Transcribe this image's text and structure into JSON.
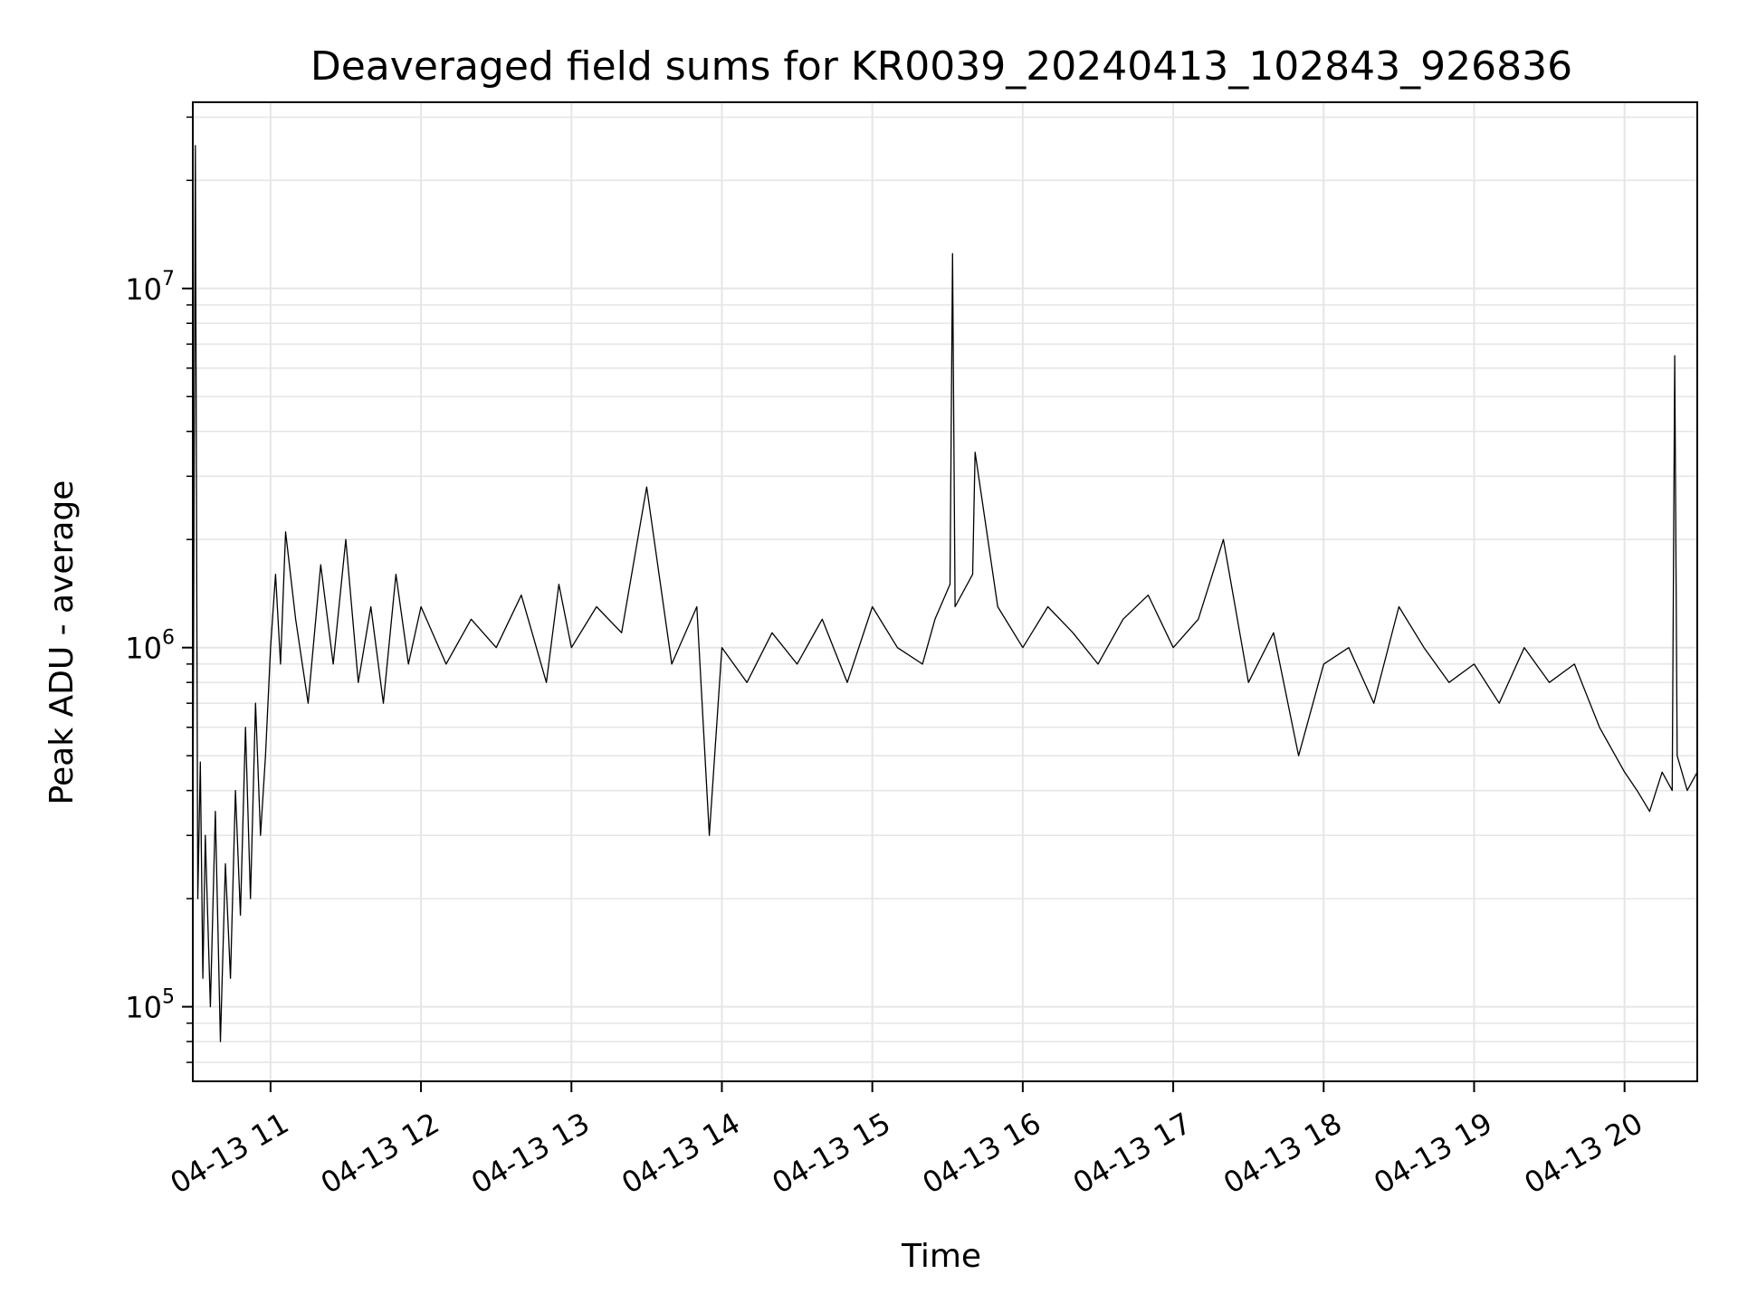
{
  "chart_data": {
    "type": "line",
    "title": "Deaveraged field sums for KR0039_20240413_102843_926836",
    "xlabel": "Time",
    "ylabel": "Peak ADU - average",
    "yscale": "log",
    "ylim": [
      62000,
      33000000
    ],
    "xlim": [
      "2024-04-13 10:29",
      "2024-04-13 20:29"
    ],
    "grid": true,
    "line_color": "#000000",
    "grid_color": "#e6e6e6",
    "x_ticks": [
      {
        "value": "2024-04-13 11:00",
        "label": "04-13 11"
      },
      {
        "value": "2024-04-13 12:00",
        "label": "04-13 12"
      },
      {
        "value": "2024-04-13 13:00",
        "label": "04-13 13"
      },
      {
        "value": "2024-04-13 14:00",
        "label": "04-13 14"
      },
      {
        "value": "2024-04-13 15:00",
        "label": "04-13 15"
      },
      {
        "value": "2024-04-13 16:00",
        "label": "04-13 16"
      },
      {
        "value": "2024-04-13 17:00",
        "label": "04-13 17"
      },
      {
        "value": "2024-04-13 18:00",
        "label": "04-13 18"
      },
      {
        "value": "2024-04-13 19:00",
        "label": "04-13 19"
      },
      {
        "value": "2024-04-13 20:00",
        "label": "04-13 20"
      }
    ],
    "y_ticks": [
      {
        "value": 100000,
        "base": "10",
        "exp": "5"
      },
      {
        "value": 1000000,
        "base": "10",
        "exp": "6"
      },
      {
        "value": 10000000,
        "base": "10",
        "exp": "7"
      }
    ],
    "series": [
      {
        "x": [
          "2024-04-13 10:29",
          "2024-04-13 10:30",
          "2024-04-13 10:31",
          "2024-04-13 10:32",
          "2024-04-13 10:33",
          "2024-04-13 10:34",
          "2024-04-13 10:36",
          "2024-04-13 10:38",
          "2024-04-13 10:40",
          "2024-04-13 10:42",
          "2024-04-13 10:44",
          "2024-04-13 10:46",
          "2024-04-13 10:48",
          "2024-04-13 10:50",
          "2024-04-13 10:52",
          "2024-04-13 10:54",
          "2024-04-13 10:56",
          "2024-04-13 10:58",
          "2024-04-13 11:00",
          "2024-04-13 11:02",
          "2024-04-13 11:04",
          "2024-04-13 11:06",
          "2024-04-13 11:10",
          "2024-04-13 11:15",
          "2024-04-13 11:20",
          "2024-04-13 11:25",
          "2024-04-13 11:30",
          "2024-04-13 11:35",
          "2024-04-13 11:40",
          "2024-04-13 11:45",
          "2024-04-13 11:50",
          "2024-04-13 11:55",
          "2024-04-13 12:00",
          "2024-04-13 12:10",
          "2024-04-13 12:20",
          "2024-04-13 12:30",
          "2024-04-13 12:40",
          "2024-04-13 12:50",
          "2024-04-13 12:55",
          "2024-04-13 13:00",
          "2024-04-13 13:10",
          "2024-04-13 13:20",
          "2024-04-13 13:30",
          "2024-04-13 13:40",
          "2024-04-13 13:50",
          "2024-04-13 13:55",
          "2024-04-13 14:00",
          "2024-04-13 14:10",
          "2024-04-13 14:20",
          "2024-04-13 14:30",
          "2024-04-13 14:40",
          "2024-04-13 14:50",
          "2024-04-13 15:00",
          "2024-04-13 15:10",
          "2024-04-13 15:20",
          "2024-04-13 15:25",
          "2024-04-13 15:31",
          "2024-04-13 15:32",
          "2024-04-13 15:33",
          "2024-04-13 15:40",
          "2024-04-13 15:41",
          "2024-04-13 15:50",
          "2024-04-13 16:00",
          "2024-04-13 16:10",
          "2024-04-13 16:20",
          "2024-04-13 16:30",
          "2024-04-13 16:40",
          "2024-04-13 16:50",
          "2024-04-13 17:00",
          "2024-04-13 17:10",
          "2024-04-13 17:20",
          "2024-04-13 17:30",
          "2024-04-13 17:40",
          "2024-04-13 17:50",
          "2024-04-13 18:00",
          "2024-04-13 18:10",
          "2024-04-13 18:20",
          "2024-04-13 18:30",
          "2024-04-13 18:40",
          "2024-04-13 18:50",
          "2024-04-13 19:00",
          "2024-04-13 19:10",
          "2024-04-13 19:20",
          "2024-04-13 19:30",
          "2024-04-13 19:40",
          "2024-04-13 19:50",
          "2024-04-13 20:00",
          "2024-04-13 20:05",
          "2024-04-13 20:10",
          "2024-04-13 20:15",
          "2024-04-13 20:19",
          "2024-04-13 20:20",
          "2024-04-13 20:21",
          "2024-04-13 20:25",
          "2024-04-13 20:29"
        ],
        "values": [
          280000,
          25000000,
          200000,
          480000,
          120000,
          300000,
          100000,
          350000,
          80000,
          250000,
          120000,
          400000,
          180000,
          600000,
          200000,
          700000,
          300000,
          500000,
          1000000,
          1600000,
          900000,
          2100000,
          1200000,
          700000,
          1700000,
          900000,
          2000000,
          800000,
          1300000,
          700000,
          1600000,
          900000,
          1300000,
          900000,
          1200000,
          1000000,
          1400000,
          800000,
          1500000,
          1000000,
          1300000,
          1100000,
          2800000,
          900000,
          1300000,
          300000,
          1000000,
          800000,
          1100000,
          900000,
          1200000,
          800000,
          1300000,
          1000000,
          900000,
          1200000,
          1500000,
          12500000,
          1300000,
          1600000,
          3500000,
          1300000,
          1000000,
          1300000,
          1100000,
          900000,
          1200000,
          1400000,
          1000000,
          1200000,
          2000000,
          800000,
          1100000,
          500000,
          900000,
          1000000,
          700000,
          1300000,
          1000000,
          800000,
          900000,
          700000,
          1000000,
          800000,
          900000,
          600000,
          450000,
          400000,
          350000,
          450000,
          400000,
          6500000,
          500000,
          400000,
          450000
        ]
      }
    ]
  }
}
